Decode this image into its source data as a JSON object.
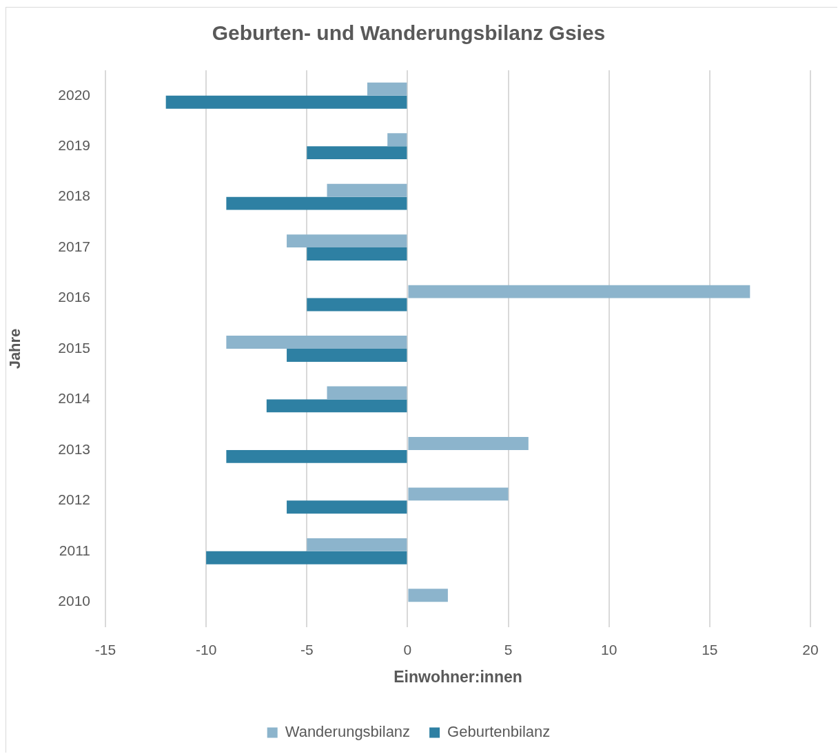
{
  "chart_data": {
    "type": "bar",
    "orientation": "horizontal",
    "title": "Geburten- und Wanderungsbilanz Gsies",
    "xlabel": "Einwohner:innen",
    "ylabel": "Jahre",
    "categories": [
      "2020",
      "2019",
      "2018",
      "2017",
      "2016",
      "2015",
      "2014",
      "2013",
      "2012",
      "2011",
      "2010"
    ],
    "series": [
      {
        "name": "Wanderungsbilanz",
        "color": "#8cb4cc",
        "values": [
          -2,
          -1,
          -4,
          -6,
          17,
          -9,
          -4,
          6,
          5,
          -5,
          2
        ]
      },
      {
        "name": "Geburtenbilanz",
        "color": "#2e80a3",
        "values": [
          -12,
          -5,
          -9,
          -5,
          -5,
          -6,
          -7,
          -9,
          -6,
          -10,
          0
        ]
      }
    ],
    "xlim": [
      -15,
      20
    ],
    "xticks": [
      -15,
      -10,
      -5,
      0,
      5,
      10,
      15,
      20
    ],
    "grid": "x",
    "legend": "bottom"
  }
}
